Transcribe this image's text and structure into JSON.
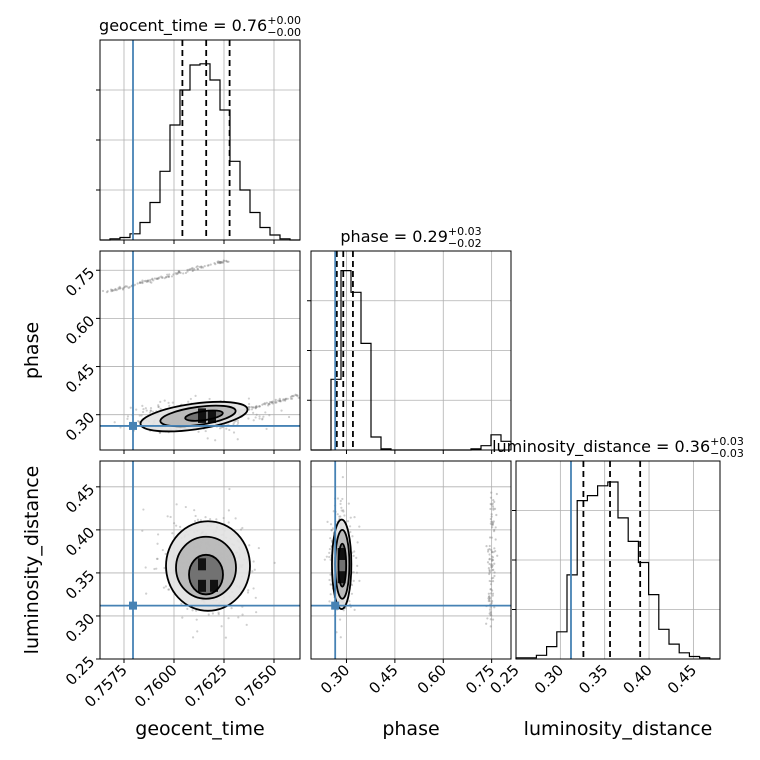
{
  "chart_data": {
    "type": "corner",
    "parameters": [
      "geocent_time",
      "phase",
      "luminosity_distance"
    ],
    "truth": {
      "geocent_time": 0.75795,
      "phase": 0.265,
      "luminosity_distance": 0.312
    },
    "titles": [
      {
        "main": "geocent_time = 0.76",
        "sup": "+0.00",
        "sub": "−0.00"
      },
      {
        "main": "phase = 0.29",
        "sup": "+0.03",
        "sub": "−0.02"
      },
      {
        "main": "luminosity_distance = 0.36",
        "sup": "+0.03",
        "sub": "−0.03"
      }
    ],
    "axes": {
      "geocent_time": {
        "range": [
          0.7563,
          0.7663
        ],
        "ticks": [
          0.7575,
          0.76,
          0.7625,
          0.765
        ],
        "tick_labels": [
          "0.7575",
          "0.7600",
          "0.7625",
          "0.7650"
        ],
        "label": "geocent_time"
      },
      "phase": {
        "range": [
          0.19,
          0.81
        ],
        "ticks": [
          0.3,
          0.45,
          0.6,
          0.75
        ],
        "tick_labels": [
          "0.30",
          "0.45",
          "0.60",
          "0.75"
        ],
        "label": "phase"
      },
      "luminosity_distance": {
        "range": [
          0.25,
          0.48
        ],
        "ticks": [
          0.25,
          0.3,
          0.35,
          0.4,
          0.45
        ],
        "tick_labels": [
          "0.25",
          "0.30",
          "0.35",
          "0.40",
          "0.45"
        ],
        "label": "luminosity_distance"
      }
    },
    "histograms": {
      "geocent_time": {
        "bin_edges": [
          0.7563,
          0.7568,
          0.7573,
          0.7578,
          0.7583,
          0.7588,
          0.7593,
          0.7598,
          0.7603,
          0.7608,
          0.7613,
          0.7618,
          0.7623,
          0.7628,
          0.7633,
          0.7638,
          0.7643,
          0.7648,
          0.7653,
          0.7658,
          0.7663
        ],
        "counts": [
          0,
          1,
          2,
          5,
          14,
          30,
          55,
          92,
          120,
          140,
          141,
          128,
          104,
          63,
          40,
          22,
          10,
          4,
          1,
          0
        ],
        "quantiles": [
          0.76042,
          0.76161,
          0.76278
        ]
      },
      "phase": {
        "bin_edges": [
          0.19,
          0.221,
          0.252,
          0.283,
          0.314,
          0.345,
          0.376,
          0.407,
          0.438,
          0.469,
          0.5,
          0.531,
          0.562,
          0.593,
          0.624,
          0.655,
          0.686,
          0.717,
          0.748,
          0.779,
          0.81
        ],
        "counts": [
          0,
          0,
          65,
          165,
          145,
          98,
          12,
          1,
          0,
          0,
          0,
          0,
          0,
          0,
          0,
          0,
          1,
          4,
          14,
          8
        ],
        "quantiles": [
          0.27,
          0.29,
          0.32
        ]
      },
      "luminosity_distance": {
        "bin_edges": [
          0.25,
          0.2615,
          0.273,
          0.2845,
          0.296,
          0.3075,
          0.319,
          0.3305,
          0.342,
          0.3535,
          0.365,
          0.3765,
          0.388,
          0.3995,
          0.411,
          0.4225,
          0.434,
          0.4455,
          0.457,
          0.4685,
          0.48
        ],
        "counts": [
          1,
          1,
          3,
          10,
          22,
          68,
          128,
          132,
          140,
          143,
          114,
          95,
          78,
          52,
          24,
          12,
          5,
          2,
          1,
          0
        ],
        "quantiles": [
          0.326,
          0.356,
          0.39
        ]
      }
    },
    "ymax": {
      "geocent_time": 160,
      "phase": 183,
      "luminosity_distance": 160
    },
    "joint": [
      {
        "x": "geocent_time",
        "y": "phase",
        "clouds": [
          {
            "from": [
              0.7566,
              0.682
            ],
            "to": [
              0.7627,
              0.782
            ],
            "spread": 0.007,
            "n": 130
          },
          {
            "from": [
              0.7592,
              0.245
            ],
            "to": [
              0.7663,
              0.36
            ],
            "spread": 0.008,
            "n": 150
          }
        ],
        "contours": [
          {
            "level": 0.39,
            "cx": 0.7615,
            "cy": 0.297,
            "rx": 0.00095,
            "ry": 0.014,
            "rot": -8
          },
          {
            "level": 0.86,
            "cx": 0.7612,
            "cy": 0.296,
            "rx": 0.0019,
            "ry": 0.028,
            "rot": -8
          },
          {
            "level": 0.99,
            "cx": 0.761,
            "cy": 0.294,
            "rx": 0.0027,
            "ry": 0.04,
            "rot": -8
          }
        ],
        "core": [
          [
            0.7614,
            0.293
          ],
          [
            0.7619,
            0.293
          ],
          [
            0.7614,
            0.301
          ]
        ]
      },
      {
        "x": "geocent_time",
        "y": "luminosity_distance",
        "clouds": [],
        "contours": [
          {
            "level": 0.39,
            "cx": 0.7616,
            "cy": 0.348,
            "rx": 0.00085,
            "ry": 0.023,
            "rot": 0
          },
          {
            "level": 0.86,
            "cx": 0.7616,
            "cy": 0.356,
            "rx": 0.0015,
            "ry": 0.036,
            "rot": 0
          },
          {
            "level": 0.99,
            "cx": 0.7617,
            "cy": 0.358,
            "rx": 0.0021,
            "ry": 0.052,
            "rot": 0
          }
        ],
        "core": [
          [
            0.7614,
            0.335
          ],
          [
            0.762,
            0.335
          ],
          [
            0.7614,
            0.36
          ]
        ]
      },
      {
        "x": "phase",
        "y": "luminosity_distance",
        "clouds": [
          {
            "from": [
              0.745,
              0.29
            ],
            "to": [
              0.755,
              0.44
            ],
            "spread": 0.025,
            "n": 110
          }
        ],
        "contours": [
          {
            "level": 0.39,
            "cx": 0.287,
            "cy": 0.359,
            "rx": 0.012,
            "ry": 0.025,
            "rot": 0
          },
          {
            "level": 0.86,
            "cx": 0.287,
            "cy": 0.36,
            "rx": 0.022,
            "ry": 0.04,
            "rot": 0
          },
          {
            "level": 0.99,
            "cx": 0.285,
            "cy": 0.36,
            "rx": 0.03,
            "ry": 0.052,
            "rot": 0
          }
        ],
        "core": [
          [
            0.285,
            0.345
          ],
          [
            0.285,
            0.372
          ]
        ]
      }
    ],
    "colors": {
      "truth": "#4682b4",
      "line": "#000000",
      "grid": "#b0b0b0",
      "point": "#888888"
    },
    "grid": true
  }
}
